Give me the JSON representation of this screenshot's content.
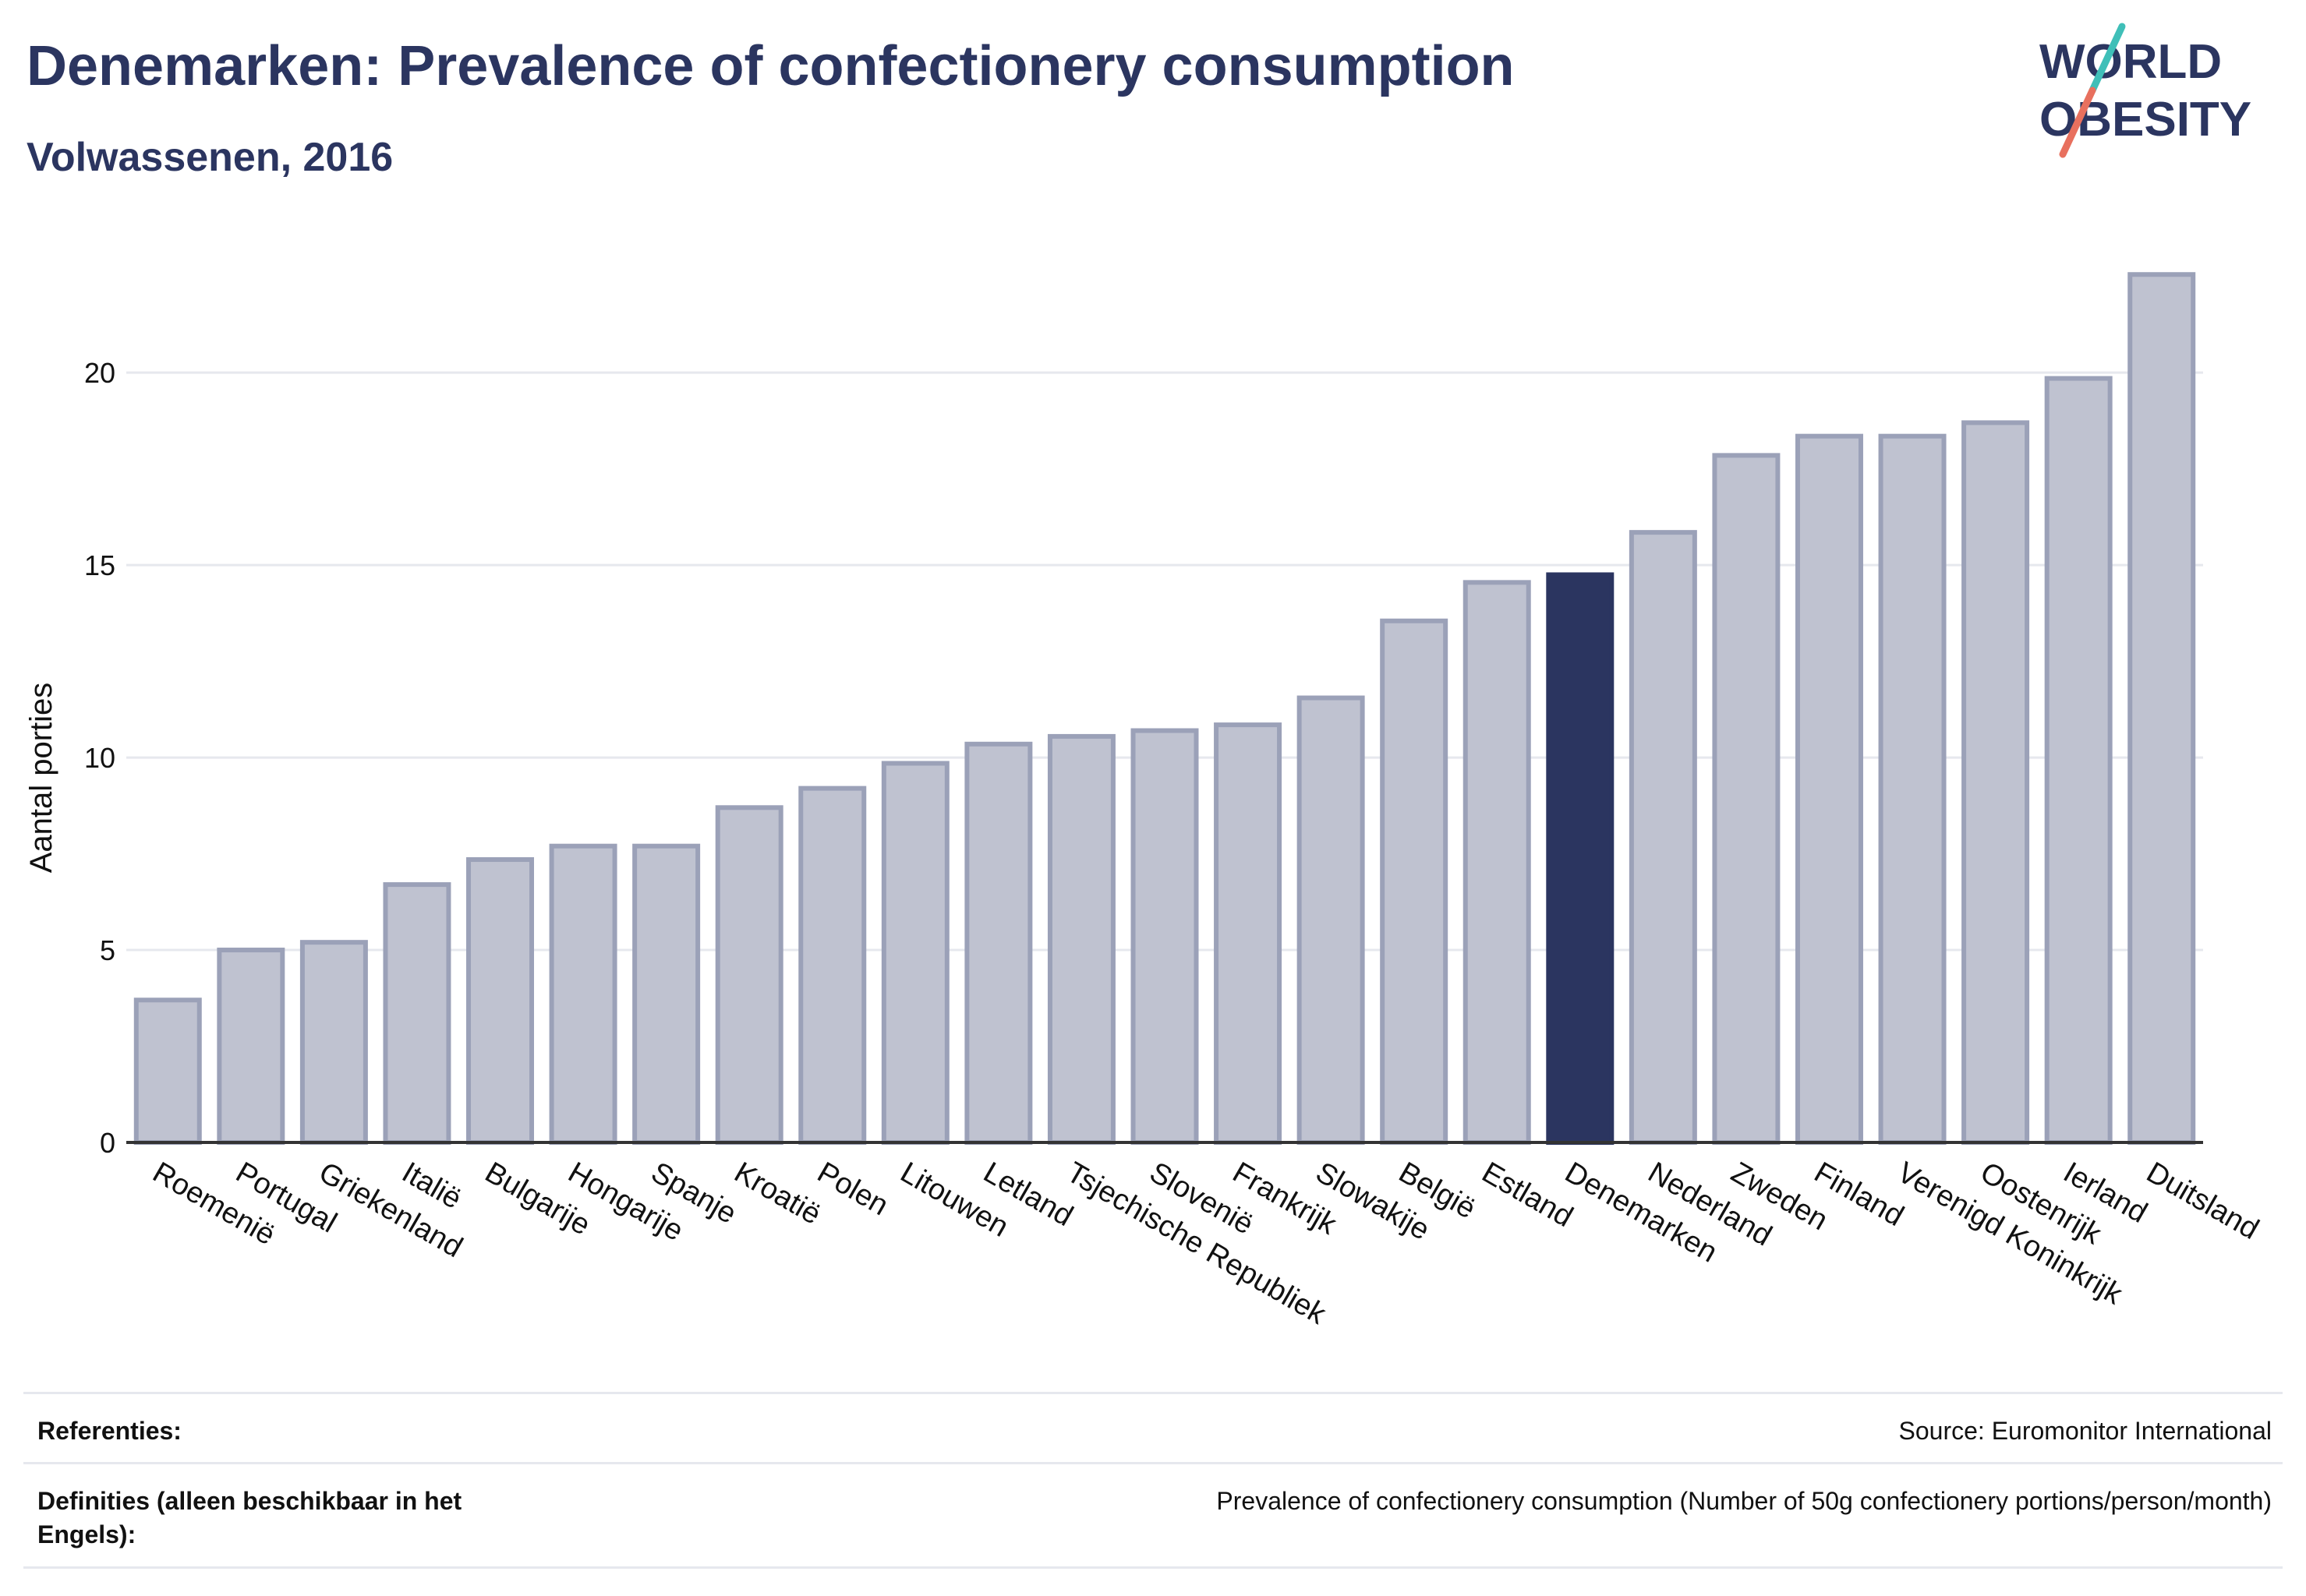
{
  "header": {
    "title": "Denemarken: Prevalence of confectionery consumption",
    "subtitle": "Volwassenen, 2016"
  },
  "logo": {
    "line1": "WORLD",
    "line2": "OBESITY"
  },
  "chart_data": {
    "type": "bar",
    "title": "Denemarken: Prevalence of confectionery consumption",
    "subtitle": "Volwassenen, 2016",
    "xlabel": "",
    "ylabel": "Aantal porties",
    "ylim": [
      0,
      23
    ],
    "yticks": [
      0,
      5,
      10,
      15,
      20
    ],
    "grid": true,
    "categories": [
      "Roemenië",
      "Portugal",
      "Griekenland",
      "Italië",
      "Bulgarije",
      "Hongarije",
      "Spanje",
      "Kroatië",
      "Polen",
      "Litouwen",
      "Letland",
      "Tsjechische Republiek",
      "Slovenië",
      "Frankrijk",
      "Slowakije",
      "België",
      "Estland",
      "Denemarken",
      "Nederland",
      "Zweden",
      "Finland",
      "Verenigd Koninkrijk",
      "Oostenrijk",
      "Ierland",
      "Duitsland"
    ],
    "values": [
      3.7,
      5.0,
      5.2,
      6.7,
      7.35,
      7.7,
      7.7,
      8.7,
      9.2,
      9.85,
      10.35,
      10.55,
      10.7,
      10.85,
      11.55,
      13.55,
      14.55,
      14.75,
      15.85,
      17.85,
      18.35,
      18.35,
      18.7,
      19.85,
      22.55
    ],
    "highlight": "Denemarken",
    "colors": {
      "bar": "#bfc2d0",
      "bar_border": "#9ba1b8",
      "highlight": "#2b3560",
      "grid": "#e6e8ee",
      "axis": "#333333"
    }
  },
  "footer": {
    "references_label": "Referenties:",
    "references_value": "Source: Euromonitor International",
    "definitions_label": "Definities (alleen beschikbaar in het Engels):",
    "definitions_value": "Prevalence of confectionery consumption (Number of 50g confectionery portions/person/month)"
  }
}
